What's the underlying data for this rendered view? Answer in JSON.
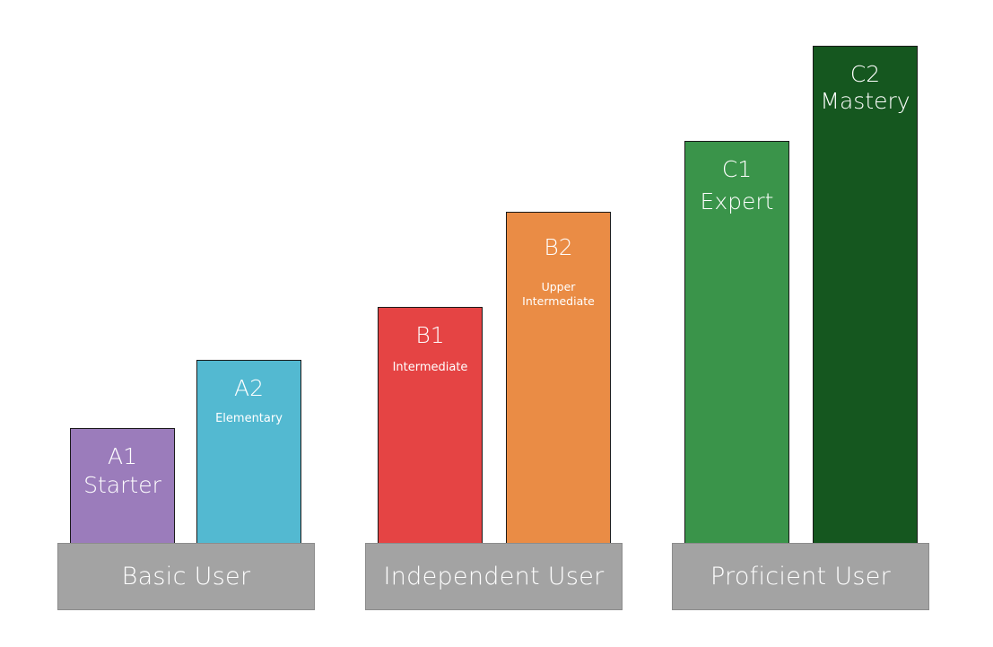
{
  "groups": [
    {
      "label": "Basic User",
      "color": "#a3a3a3"
    },
    {
      "label": "Independent User",
      "color": "#a3a3a3"
    },
    {
      "label": "Proficient User",
      "color": "#a3a3a3"
    }
  ],
  "levels": [
    {
      "code": "A1",
      "name": "Starter",
      "color": "#9b7cbb"
    },
    {
      "code": "A2",
      "name": "Elementary",
      "color": "#53b9d1"
    },
    {
      "code": "B1",
      "name": "Intermediate",
      "color": "#e54444"
    },
    {
      "code": "B2",
      "name_line1": "Upper",
      "name_line2": "Intermediate",
      "color": "#ea8c45"
    },
    {
      "code": "C1",
      "name": "Expert",
      "color": "#3a944a"
    },
    {
      "code": "C2",
      "name": "Mastery",
      "color": "#15571f"
    }
  ]
}
